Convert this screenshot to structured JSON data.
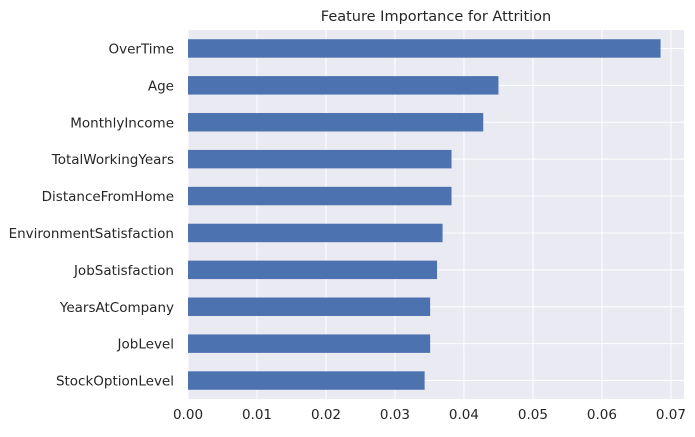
{
  "chart_data": {
    "type": "bar",
    "orientation": "horizontal",
    "title": "Feature Importance for Attrition",
    "xlabel": "",
    "ylabel": "",
    "categories": [
      "OverTime",
      "Age",
      "MonthlyIncome",
      "TotalWorkingYears",
      "DistanceFromHome",
      "EnvironmentSatisfaction",
      "JobSatisfaction",
      "YearsAtCompany",
      "JobLevel",
      "StockOptionLevel"
    ],
    "values": [
      0.0685,
      0.045,
      0.0428,
      0.0382,
      0.0382,
      0.0369,
      0.0361,
      0.0351,
      0.0351,
      0.0343
    ],
    "xlim": [
      0,
      0.0719
    ],
    "xticks": [
      0.0,
      0.01,
      0.02,
      0.03,
      0.04,
      0.05,
      0.06,
      0.07
    ],
    "xtick_labels": [
      "0.00",
      "0.01",
      "0.02",
      "0.03",
      "0.04",
      "0.05",
      "0.06",
      "0.07"
    ],
    "grid": true,
    "colors": {
      "bar": "#4c72b0",
      "background": "#eaeaf2",
      "grid": "#ffffff"
    }
  }
}
